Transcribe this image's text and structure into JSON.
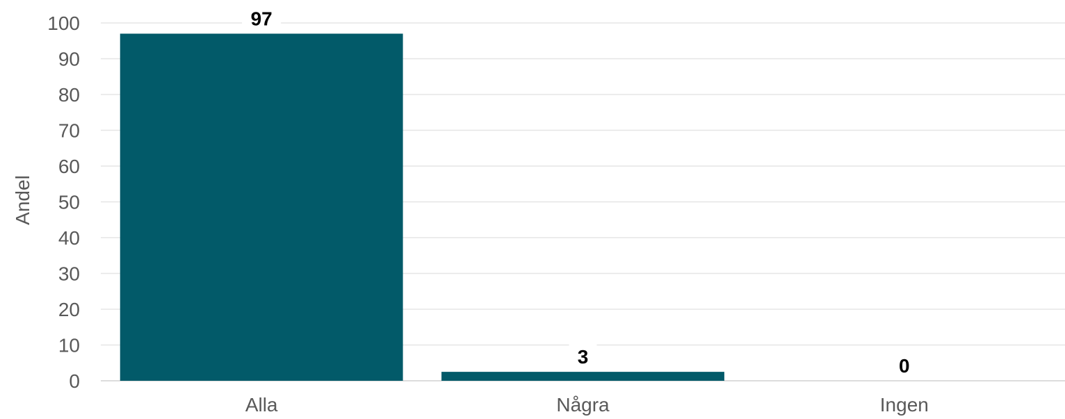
{
  "chart_data": {
    "type": "bar",
    "categories": [
      "Alla",
      "Några",
      "Ingen"
    ],
    "values": [
      97,
      2.5,
      0
    ],
    "data_labels": [
      "97",
      "3",
      "0"
    ],
    "title": "",
    "xlabel": "",
    "ylabel": "Andel",
    "ylim": [
      0,
      100
    ],
    "yticks": [
      0,
      10,
      20,
      30,
      40,
      50,
      60,
      70,
      80,
      90,
      100
    ],
    "grid": true,
    "legend": "none",
    "bar_color": "#025a69"
  }
}
